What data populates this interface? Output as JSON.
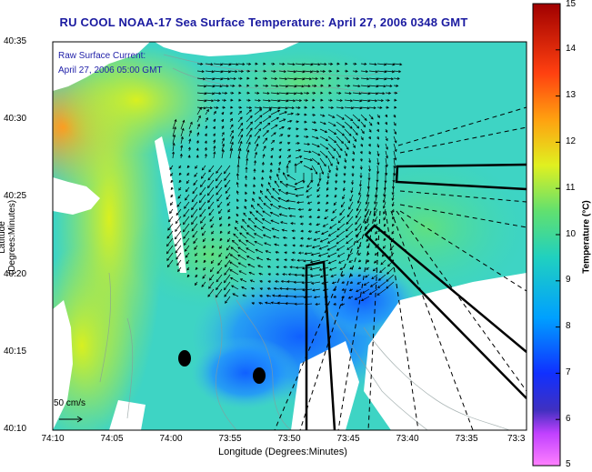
{
  "title": "RU COOL  NOAA-17  Sea Surface Temperature:  April 27, 2006 0348 GMT",
  "legend": {
    "line1": "Raw Surface Current:",
    "line2": "April 27, 2006 05:00 GMT"
  },
  "axes": {
    "xlabel": "Longitude (Degrees:Minutes)",
    "ylabel": "Latitude (Degrees:Minutes)",
    "x_ticks": [
      "74:10",
      "74:05",
      "74:00",
      "73:55",
      "73:50",
      "73:45",
      "73:40",
      "73:35",
      "73:3"
    ],
    "y_ticks": [
      "40:35",
      "40:30",
      "40:25",
      "40:20",
      "40:15",
      "40:10"
    ]
  },
  "colorbar": {
    "label": "Temperature (°C)",
    "min": 5,
    "max": 15,
    "ticks": [
      "15",
      "14",
      "13",
      "12",
      "11",
      "10",
      "9",
      "8",
      "7",
      "6",
      "5"
    ]
  },
  "scale_arrow": {
    "label": "50 cm/s"
  },
  "colors": {
    "title": "#1a1aa0",
    "land": "#ffffff",
    "track": "#000000",
    "current_vector": "#000000"
  }
}
